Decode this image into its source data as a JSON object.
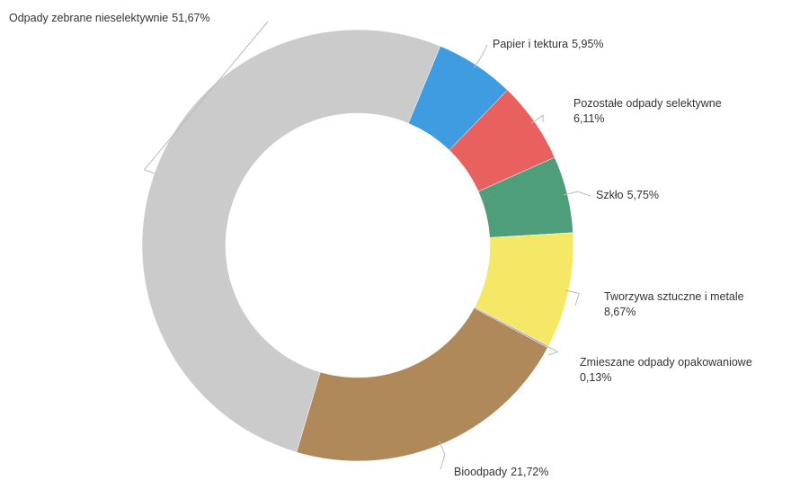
{
  "chart_data": {
    "type": "donut",
    "categories": [
      "Papier i tektura",
      "Pozostałe odpady selektywne",
      "Szkło",
      "Tworzywa sztuczne i metale",
      "Zmieszane odpady opakowaniowe",
      "Bioodpady",
      "Odpady zebrane nieselektywnie"
    ],
    "values": [
      5.95,
      6.11,
      5.75,
      8.67,
      0.13,
      21.72,
      51.67
    ],
    "value_labels": [
      "5,95%",
      "6,11%",
      "5,75%",
      "8,67%",
      "0,13%",
      "21,72%",
      "51,67%"
    ],
    "colors": [
      "#3f9ce0",
      "#e8615f",
      "#4f9e7b",
      "#f6e867",
      "#a99fc4",
      "#b0895a",
      "#cbcbcb"
    ]
  }
}
